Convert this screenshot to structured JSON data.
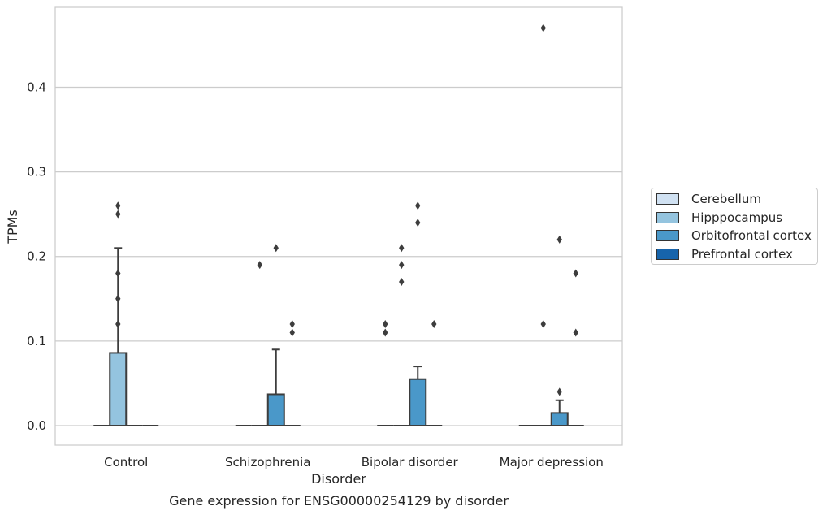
{
  "chart_data": {
    "type": "box",
    "xlabel": "Disorder",
    "ylabel": "TPMs",
    "caption": "Gene expression for ENSG00000254129 by disorder",
    "ylim": [
      -0.023,
      0.495
    ],
    "yticks": [
      0.0,
      0.1,
      0.2,
      0.3,
      0.4
    ],
    "ytick_labels": [
      "0.0",
      "0.1",
      "0.2",
      "0.3",
      "0.4"
    ],
    "grid": "horizontal",
    "legend_position": "right",
    "categories": [
      "Control",
      "Schizophrenia",
      "Bipolar disorder",
      "Major depression"
    ],
    "series": [
      {
        "name": "Cerebellum",
        "color": "#d0e1f2"
      },
      {
        "name": "Hipppocampus",
        "color": "#94c4df"
      },
      {
        "name": "Orbitofrontal cortex",
        "color": "#4a98c9"
      },
      {
        "name": "Prefrontal cortex",
        "color": "#1764ab"
      }
    ],
    "boxes": [
      {
        "category": 0,
        "series": 0,
        "q1": 0,
        "median": 0,
        "q3": 0,
        "whisker_low": 0,
        "whisker_high": 0,
        "outliers": []
      },
      {
        "category": 0,
        "series": 1,
        "q1": 0,
        "median": 0,
        "q3": 0.086,
        "whisker_low": 0,
        "whisker_high": 0.21,
        "outliers": [
          0.26,
          0.25,
          0.18,
          0.12,
          0.15
        ]
      },
      {
        "category": 0,
        "series": 2,
        "q1": 0,
        "median": 0,
        "q3": 0,
        "whisker_low": 0,
        "whisker_high": 0,
        "outliers": []
      },
      {
        "category": 0,
        "series": 3,
        "q1": 0,
        "median": 0,
        "q3": 0,
        "whisker_low": 0,
        "whisker_high": 0,
        "outliers": []
      },
      {
        "category": 1,
        "series": 0,
        "q1": 0,
        "median": 0,
        "q3": 0,
        "whisker_low": 0,
        "whisker_high": 0,
        "outliers": []
      },
      {
        "category": 1,
        "series": 1,
        "q1": 0,
        "median": 0,
        "q3": 0,
        "whisker_low": 0,
        "whisker_high": 0,
        "outliers": [
          0.19
        ]
      },
      {
        "category": 1,
        "series": 2,
        "q1": 0,
        "median": 0,
        "q3": 0.037,
        "whisker_low": 0,
        "whisker_high": 0.09,
        "outliers": [
          0.21
        ]
      },
      {
        "category": 1,
        "series": 3,
        "q1": 0,
        "median": 0,
        "q3": 0,
        "whisker_low": 0,
        "whisker_high": 0,
        "outliers": [
          0.12,
          0.11
        ]
      },
      {
        "category": 2,
        "series": 0,
        "q1": 0,
        "median": 0,
        "q3": 0,
        "whisker_low": 0,
        "whisker_high": 0,
        "outliers": [
          0.12,
          0.11
        ]
      },
      {
        "category": 2,
        "series": 1,
        "q1": 0,
        "median": 0,
        "q3": 0,
        "whisker_low": 0,
        "whisker_high": 0,
        "outliers": [
          0.21,
          0.19,
          0.17
        ]
      },
      {
        "category": 2,
        "series": 2,
        "q1": 0,
        "median": 0,
        "q3": 0.055,
        "whisker_low": 0,
        "whisker_high": 0.07,
        "outliers": [
          0.26,
          0.24
        ]
      },
      {
        "category": 2,
        "series": 3,
        "q1": 0,
        "median": 0,
        "q3": 0,
        "whisker_low": 0,
        "whisker_high": 0,
        "outliers": [
          0.12
        ]
      },
      {
        "category": 3,
        "series": 0,
        "q1": 0,
        "median": 0,
        "q3": 0,
        "whisker_low": 0,
        "whisker_high": 0,
        "outliers": []
      },
      {
        "category": 3,
        "series": 1,
        "q1": 0,
        "median": 0,
        "q3": 0,
        "whisker_low": 0,
        "whisker_high": 0,
        "outliers": [
          0.47,
          0.12
        ]
      },
      {
        "category": 3,
        "series": 2,
        "q1": 0,
        "median": 0,
        "q3": 0.015,
        "whisker_low": 0,
        "whisker_high": 0.03,
        "outliers": [
          0.22,
          0.04
        ]
      },
      {
        "category": 3,
        "series": 3,
        "q1": 0,
        "median": 0,
        "q3": 0,
        "whisker_low": 0,
        "whisker_high": 0,
        "outliers": [
          0.18,
          0.11
        ]
      }
    ]
  }
}
